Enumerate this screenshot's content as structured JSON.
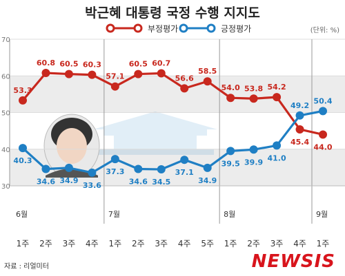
{
  "source": "자료 : 리얼미터",
  "brand": "NEWSIS",
  "chart_data": {
    "type": "line",
    "title": "박근혜 대통령 국정 수행 지지도",
    "unit": "(단위: %)",
    "ylim": [
      30,
      70
    ],
    "yticks": [
      30,
      40,
      50,
      60,
      70
    ],
    "months": [
      {
        "label": "6월",
        "index": 0
      },
      {
        "label": "7월",
        "index": 4
      },
      {
        "label": "8월",
        "index": 9
      },
      {
        "label": "9월",
        "index": 13
      }
    ],
    "categories": [
      "1주",
      "2주",
      "3주",
      "4주",
      "1주",
      "2주",
      "3주",
      "4주",
      "5주",
      "1주",
      "2주",
      "3주",
      "4주",
      "1주"
    ],
    "series": [
      {
        "name": "부정평가",
        "color": "#c8281e",
        "values": [
          53.3,
          60.8,
          60.5,
          60.3,
          57.1,
          60.5,
          60.7,
          56.6,
          58.5,
          54.0,
          53.8,
          54.2,
          45.4,
          44.0
        ]
      },
      {
        "name": "긍정평가",
        "color": "#1f7fc4",
        "values": [
          40.3,
          34.6,
          34.9,
          33.6,
          37.3,
          34.6,
          34.5,
          37.1,
          34.9,
          39.5,
          39.9,
          41.0,
          49.2,
          50.4
        ]
      }
    ]
  }
}
